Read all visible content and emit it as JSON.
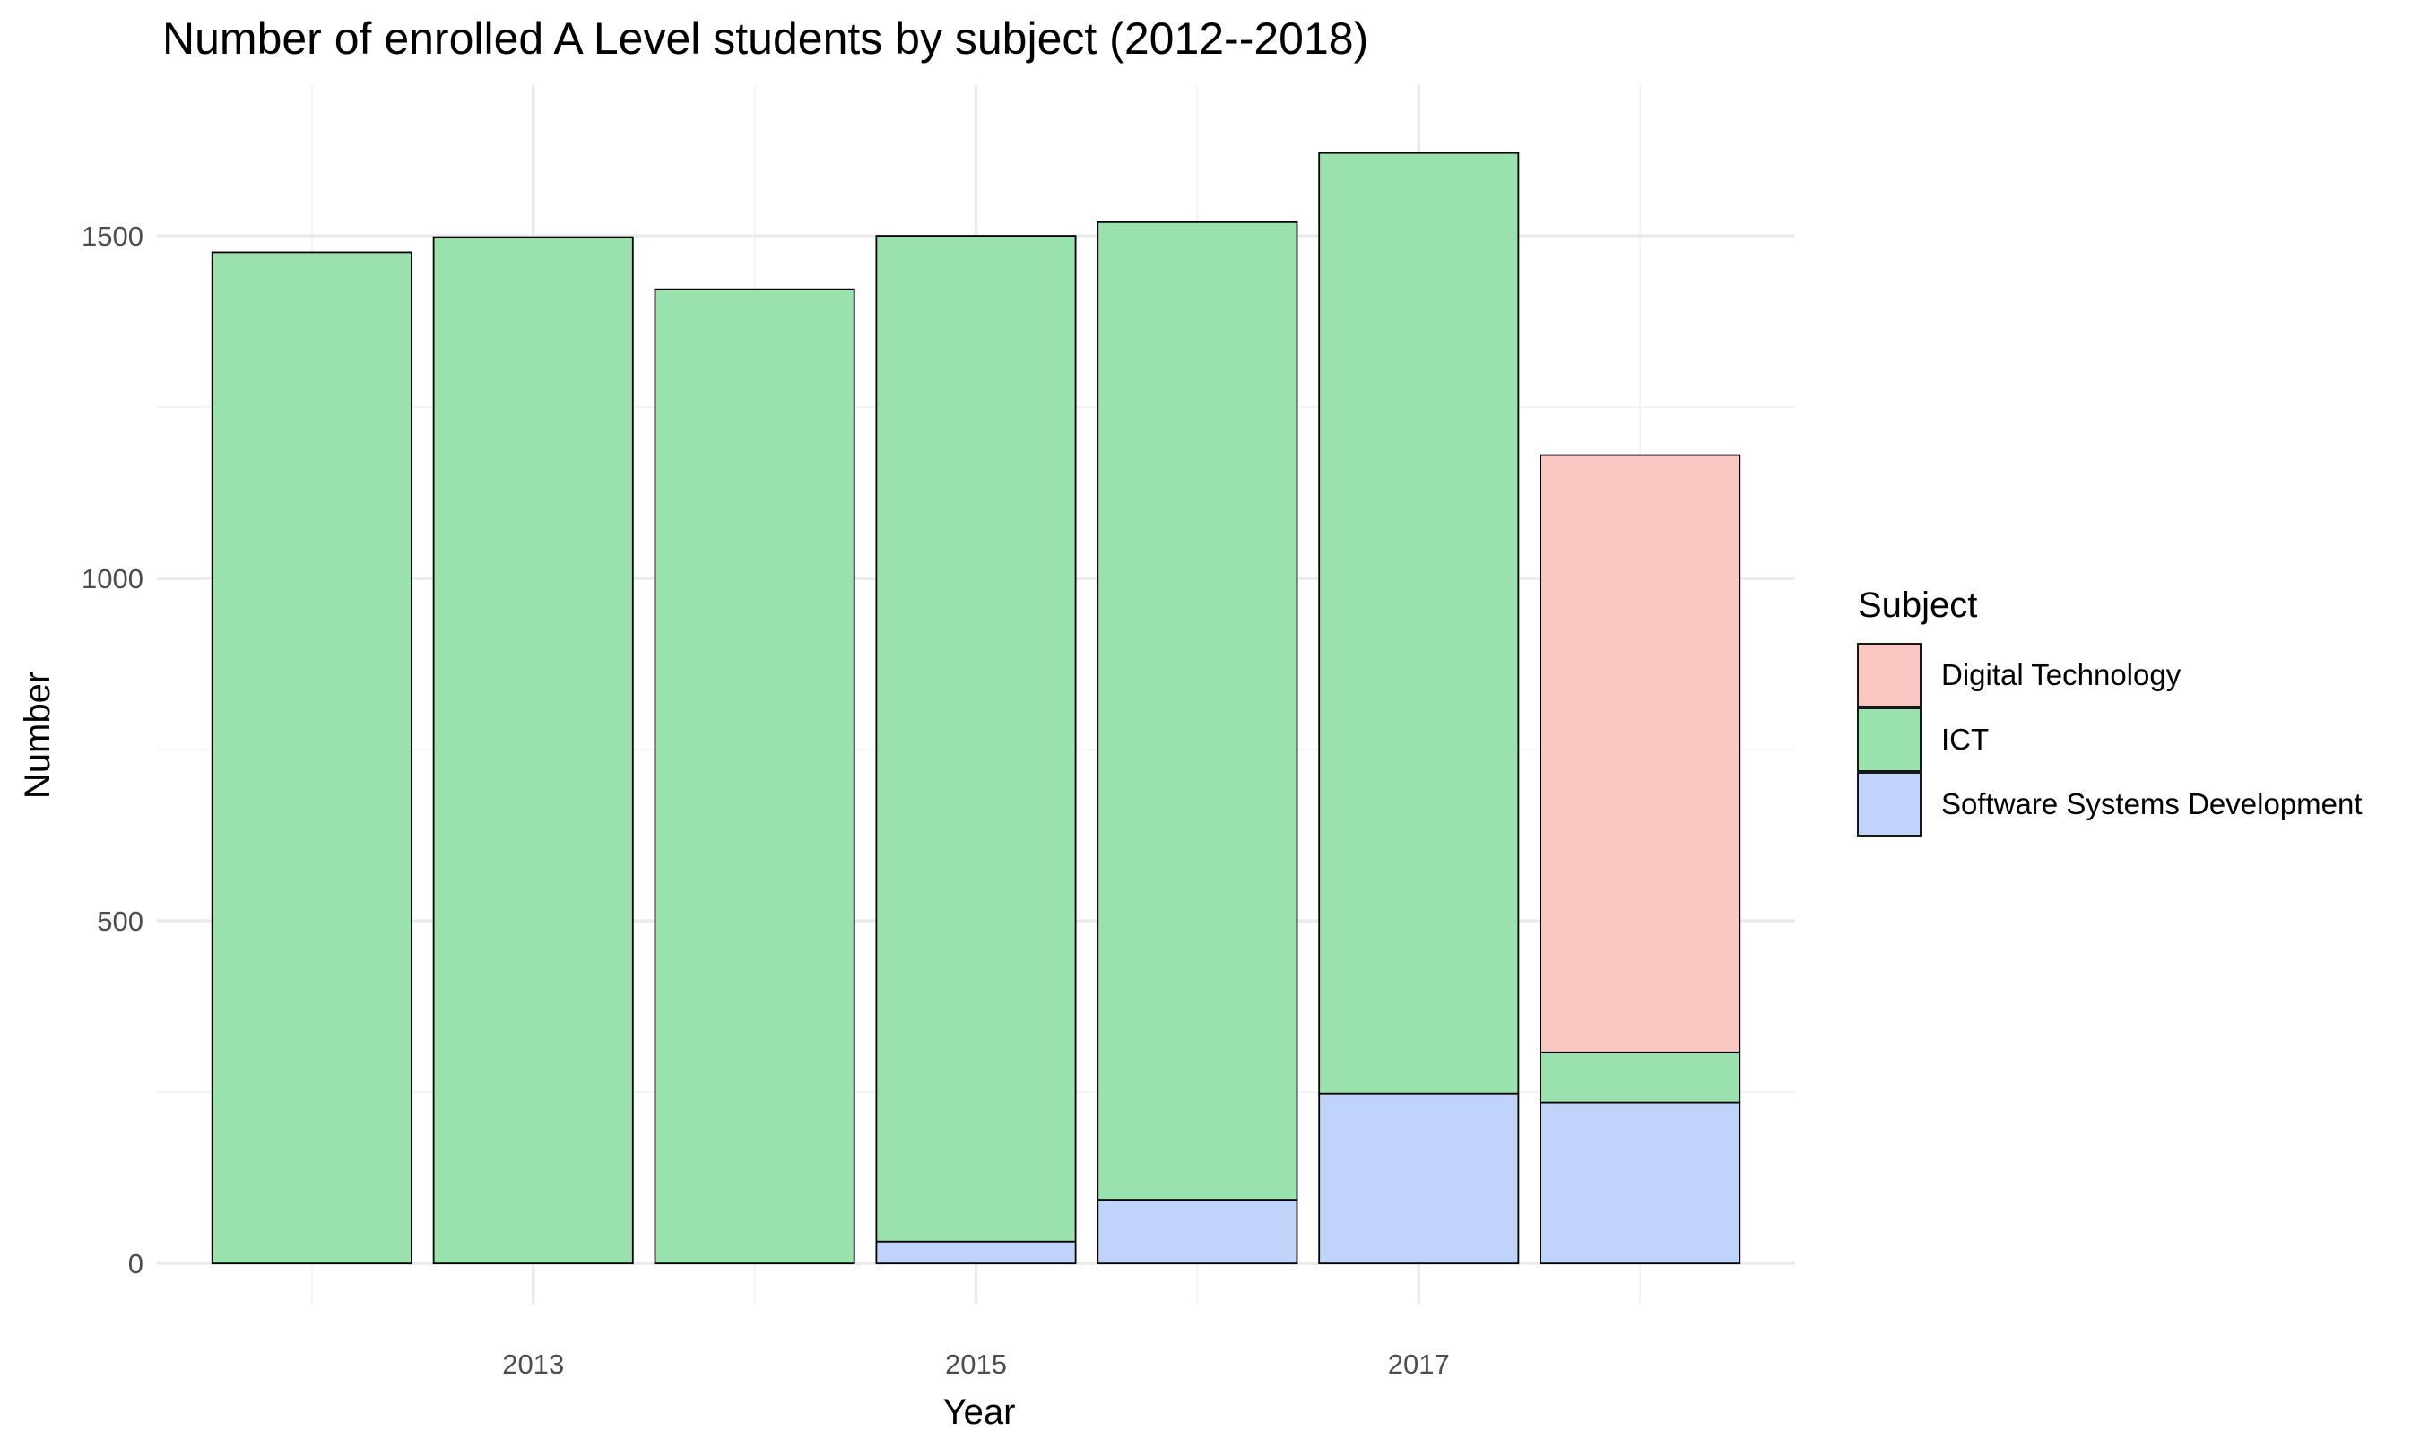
{
  "chart_data": {
    "type": "bar",
    "stacked": true,
    "title": "Number of enrolled A Level students by subject (2012--2018)",
    "xlabel": "Year",
    "ylabel": "Number",
    "x": [
      2012,
      2013,
      2014,
      2015,
      2016,
      2017,
      2018
    ],
    "xticks": [
      2013,
      2015,
      2017
    ],
    "xlim": [
      2011.3,
      2018.7
    ],
    "yticks": [
      0,
      500,
      1000,
      1500
    ],
    "ylim": [
      -60,
      1720
    ],
    "grid": true,
    "legend": {
      "title": "Subject",
      "position": "right",
      "entries": [
        "Digital Technology",
        "ICT",
        "Software Systems Development"
      ]
    },
    "series": [
      {
        "name": "Software Systems Development",
        "color": "#c0d4fb",
        "values": [
          0,
          0,
          0,
          32,
          93,
          248,
          235
        ]
      },
      {
        "name": "ICT",
        "color": "#99e2ad",
        "values": [
          1476,
          1498,
          1422,
          1468,
          1427,
          1373,
          73
        ]
      },
      {
        "name": "Digital Technology",
        "color": "#f9c6c1",
        "values": [
          0,
          0,
          0,
          0,
          0,
          0,
          872
        ]
      }
    ]
  }
}
